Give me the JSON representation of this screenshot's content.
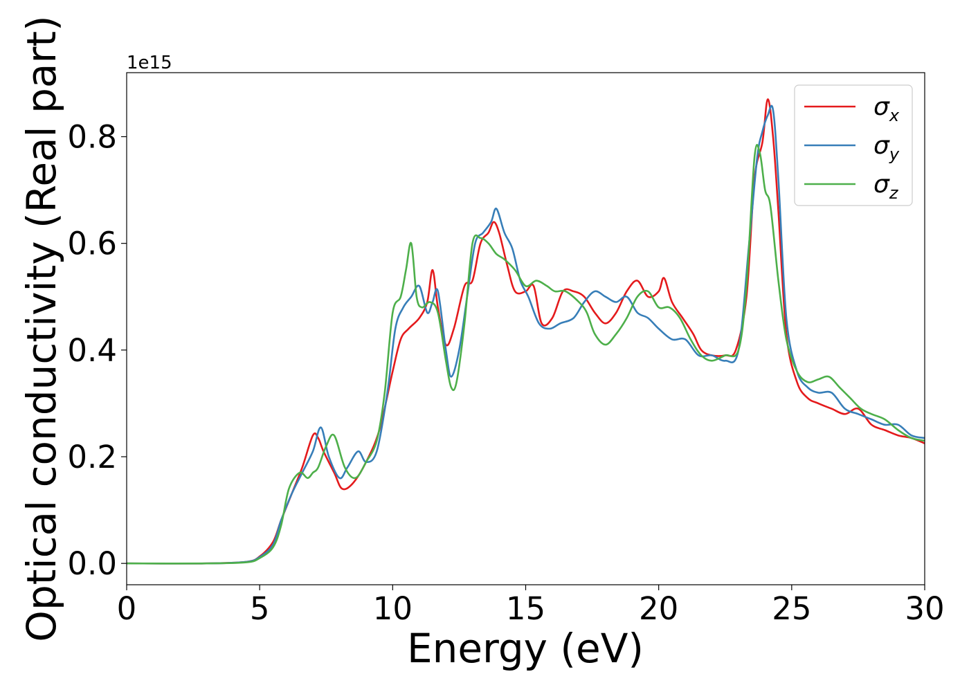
{
  "chart_data": {
    "type": "line",
    "xlabel": "Energy (eV)",
    "ylabel": "Optical conductivity (Real part)",
    "y_offset_label": "1e15",
    "xlim": [
      0,
      30
    ],
    "ylim": [
      -0.04,
      0.92
    ],
    "x_ticks": [
      0,
      5,
      10,
      15,
      20,
      25,
      30
    ],
    "x_tick_labels": [
      "0",
      "5",
      "10",
      "15",
      "20",
      "25",
      "30"
    ],
    "y_ticks": [
      0.0,
      0.2,
      0.4,
      0.6,
      0.8
    ],
    "y_tick_labels": [
      "0.0",
      "0.2",
      "0.4",
      "0.6",
      "0.8"
    ],
    "grid": false,
    "legend_position": "top-right",
    "series": [
      {
        "name": "σx",
        "symbol": "σ",
        "subscript": "x",
        "color": "#e41a1c",
        "x": [
          0,
          3,
          4.5,
          5,
          5.5,
          5.8,
          6.2,
          6.6,
          7,
          7.2,
          7.4,
          7.8,
          8.1,
          8.5,
          9,
          9.5,
          10,
          10.3,
          10.6,
          11,
          11.3,
          11.5,
          11.7,
          12,
          12.3,
          12.7,
          13,
          13.3,
          13.6,
          13.8,
          14,
          14.3,
          14.6,
          15,
          15.3,
          15.6,
          16,
          16.4,
          16.8,
          17.2,
          17.6,
          18,
          18.4,
          18.8,
          19.2,
          19.6,
          20,
          20.2,
          20.5,
          20.9,
          21.3,
          21.6,
          22,
          22.5,
          22.9,
          23.3,
          23.6,
          23.9,
          24.1,
          24.3,
          24.5,
          24.8,
          25.2,
          25.6,
          26,
          26.5,
          27,
          27.5,
          28,
          28.5,
          29,
          29.5,
          30
        ],
        "y": [
          0,
          0,
          0.003,
          0.013,
          0.04,
          0.08,
          0.13,
          0.18,
          0.24,
          0.235,
          0.21,
          0.17,
          0.14,
          0.15,
          0.19,
          0.25,
          0.36,
          0.42,
          0.44,
          0.46,
          0.49,
          0.55,
          0.48,
          0.41,
          0.44,
          0.52,
          0.53,
          0.6,
          0.62,
          0.64,
          0.62,
          0.56,
          0.51,
          0.51,
          0.52,
          0.45,
          0.46,
          0.51,
          0.51,
          0.5,
          0.47,
          0.45,
          0.47,
          0.51,
          0.53,
          0.5,
          0.51,
          0.535,
          0.49,
          0.46,
          0.43,
          0.4,
          0.39,
          0.39,
          0.4,
          0.5,
          0.72,
          0.79,
          0.87,
          0.8,
          0.66,
          0.43,
          0.34,
          0.31,
          0.3,
          0.29,
          0.28,
          0.29,
          0.26,
          0.25,
          0.24,
          0.235,
          0.225
        ]
      },
      {
        "name": "σy",
        "symbol": "σ",
        "subscript": "y",
        "color": "#377eb8",
        "x": [
          0,
          3,
          4.5,
          5,
          5.5,
          5.8,
          6.2,
          6.6,
          7,
          7.3,
          7.6,
          8,
          8.3,
          8.7,
          9,
          9.4,
          9.8,
          10.1,
          10.4,
          10.7,
          11,
          11.3,
          11.5,
          11.7,
          12,
          12.2,
          12.5,
          12.8,
          13.1,
          13.4,
          13.7,
          13.9,
          14.2,
          14.5,
          14.8,
          15.1,
          15.5,
          15.9,
          16.3,
          16.8,
          17.2,
          17.6,
          18,
          18.4,
          18.8,
          19.2,
          19.6,
          20,
          20.5,
          21,
          21.5,
          22,
          22.5,
          23,
          23.4,
          23.7,
          23.9,
          24.1,
          24.3,
          24.5,
          24.8,
          25.2,
          25.6,
          26,
          26.5,
          27,
          27.5,
          28,
          28.5,
          29,
          29.5,
          30
        ],
        "y": [
          0,
          0,
          0.003,
          0.012,
          0.035,
          0.08,
          0.13,
          0.17,
          0.21,
          0.255,
          0.2,
          0.16,
          0.18,
          0.21,
          0.19,
          0.21,
          0.32,
          0.44,
          0.48,
          0.5,
          0.52,
          0.47,
          0.49,
          0.51,
          0.4,
          0.35,
          0.4,
          0.5,
          0.6,
          0.62,
          0.64,
          0.665,
          0.62,
          0.59,
          0.53,
          0.5,
          0.45,
          0.44,
          0.45,
          0.46,
          0.49,
          0.51,
          0.5,
          0.49,
          0.5,
          0.47,
          0.46,
          0.44,
          0.42,
          0.42,
          0.39,
          0.39,
          0.38,
          0.4,
          0.6,
          0.76,
          0.81,
          0.84,
          0.85,
          0.72,
          0.46,
          0.36,
          0.33,
          0.32,
          0.32,
          0.29,
          0.28,
          0.27,
          0.26,
          0.26,
          0.24,
          0.235
        ]
      },
      {
        "name": "σz",
        "symbol": "σ",
        "subscript": "z",
        "color": "#4daf4a",
        "x": [
          0,
          3,
          4.5,
          5,
          5.5,
          5.8,
          6.1,
          6.5,
          6.8,
          7,
          7.2,
          7.5,
          7.8,
          8.2,
          8.6,
          9,
          9.4,
          9.7,
          10,
          10.3,
          10.5,
          10.7,
          10.9,
          11.1,
          11.4,
          11.7,
          12,
          12.2,
          12.4,
          12.7,
          13,
          13.3,
          13.6,
          13.9,
          14.2,
          14.6,
          15,
          15.4,
          15.8,
          16.1,
          16.5,
          17,
          17.3,
          17.6,
          18,
          18.4,
          18.8,
          19.2,
          19.6,
          20,
          20.4,
          20.8,
          21.2,
          21.6,
          22,
          22.5,
          23,
          23.3,
          23.6,
          23.8,
          24,
          24.2,
          24.5,
          24.8,
          25.2,
          25.6,
          26,
          26.4,
          26.8,
          27.2,
          27.6,
          28,
          28.5,
          29,
          29.5,
          30
        ],
        "y": [
          0,
          0,
          0.002,
          0.01,
          0.03,
          0.07,
          0.14,
          0.17,
          0.16,
          0.17,
          0.18,
          0.22,
          0.24,
          0.18,
          0.16,
          0.19,
          0.23,
          0.32,
          0.47,
          0.5,
          0.55,
          0.6,
          0.5,
          0.48,
          0.49,
          0.47,
          0.38,
          0.33,
          0.34,
          0.45,
          0.6,
          0.61,
          0.6,
          0.58,
          0.57,
          0.55,
          0.52,
          0.53,
          0.52,
          0.51,
          0.51,
          0.49,
          0.47,
          0.43,
          0.41,
          0.43,
          0.46,
          0.5,
          0.51,
          0.48,
          0.48,
          0.46,
          0.42,
          0.39,
          0.38,
          0.39,
          0.4,
          0.52,
          0.76,
          0.77,
          0.7,
          0.67,
          0.53,
          0.42,
          0.36,
          0.34,
          0.345,
          0.35,
          0.33,
          0.31,
          0.29,
          0.28,
          0.27,
          0.25,
          0.235,
          0.23
        ]
      }
    ]
  }
}
